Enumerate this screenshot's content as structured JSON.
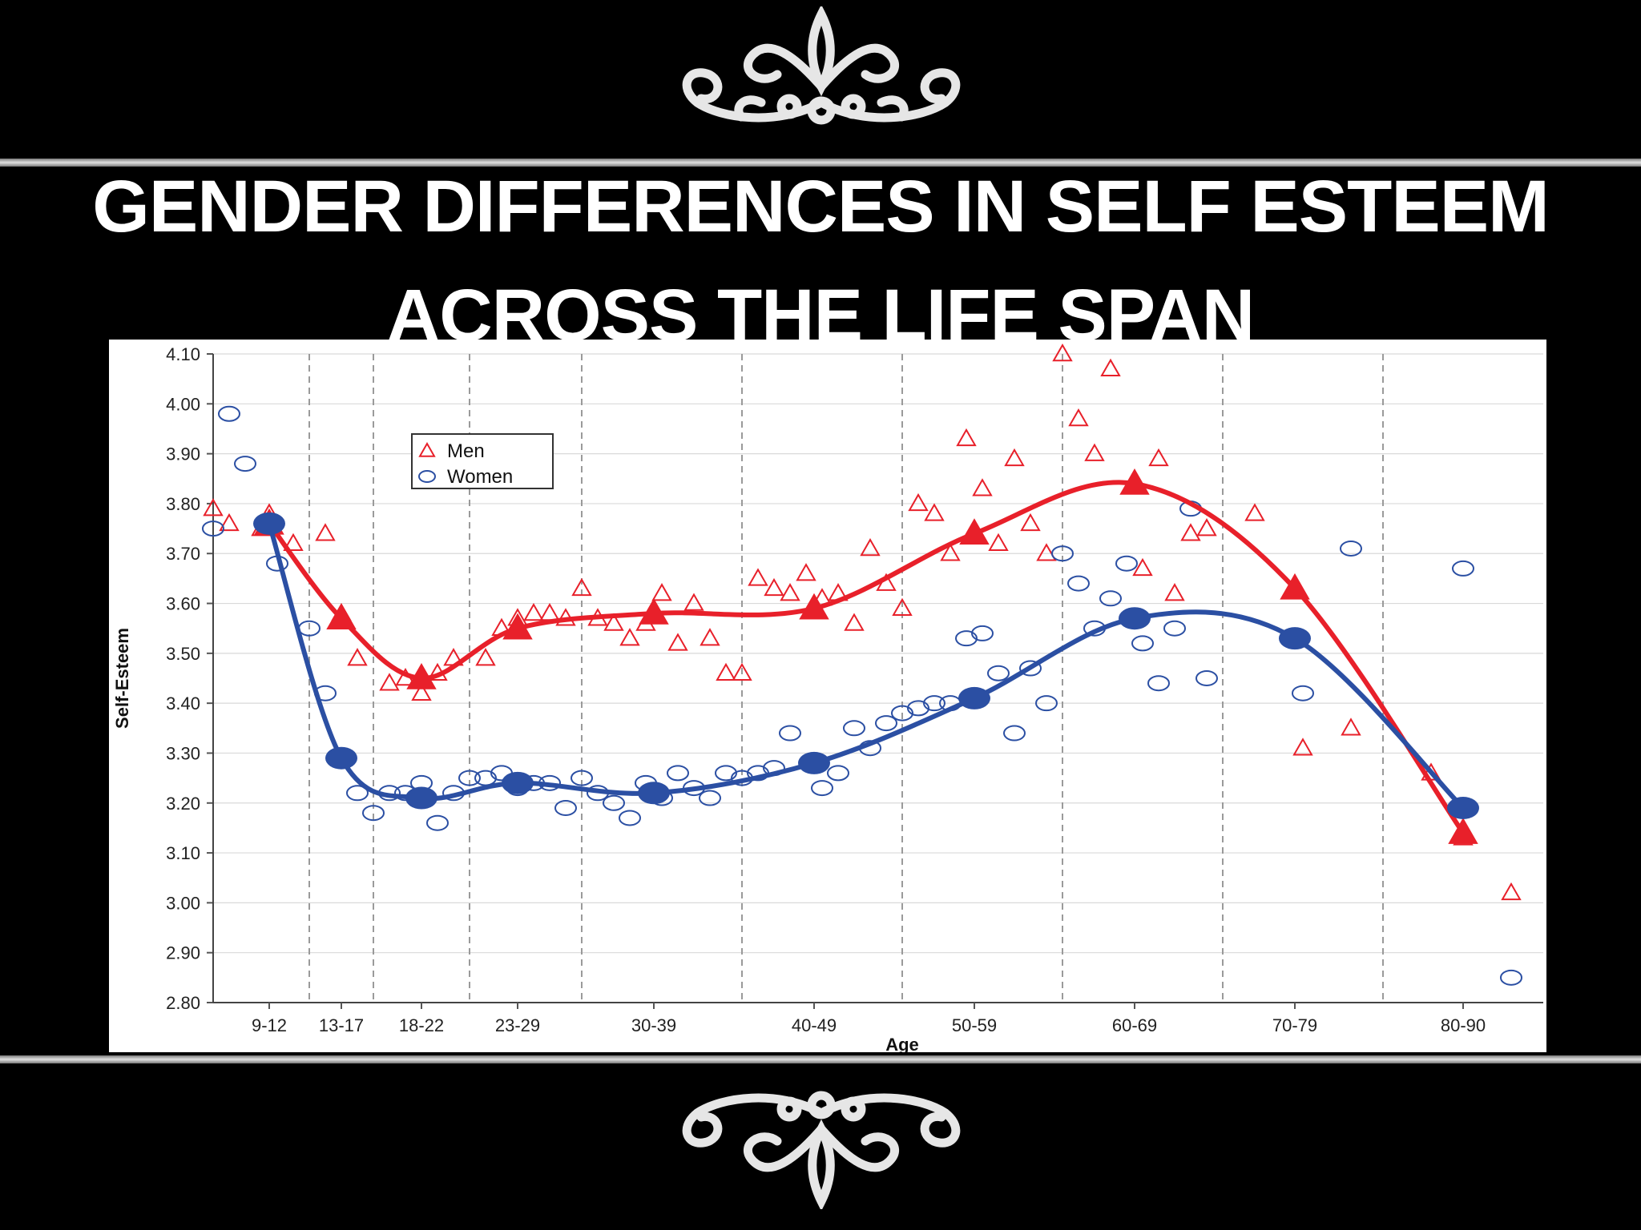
{
  "slide": {
    "title_line1": "GENDER DIFFERENCES IN SELF ESTEEM",
    "title_line2": "ACROSS THE LIFE SPAN",
    "colors": {
      "background": "#000000",
      "title": "#ffffff",
      "rule": "#cfcfcf"
    }
  },
  "chart_data": {
    "type": "scatter",
    "title": "",
    "xlabel": "Age",
    "ylabel": "Self-Esteem",
    "categories": [
      "9-12",
      "13-17",
      "18-22",
      "23-29",
      "30-39",
      "40-49",
      "50-59",
      "60-69",
      "70-79",
      "80-90"
    ],
    "category_x": [
      10.5,
      15,
      20,
      26,
      34.5,
      44.5,
      54.5,
      64.5,
      74.5,
      85
    ],
    "xlim": [
      7,
      90
    ],
    "ylim": [
      2.8,
      4.1
    ],
    "yticks": [
      "2.80",
      "2.90",
      "3.00",
      "3.10",
      "3.20",
      "3.30",
      "3.40",
      "3.50",
      "3.60",
      "3.70",
      "3.80",
      "3.90",
      "4.00",
      "4.10"
    ],
    "vgrid_x": [
      13,
      17,
      23,
      30,
      40,
      50,
      60,
      70,
      80
    ],
    "grid": true,
    "legend_position": "top-left",
    "legend": [
      {
        "label": "Men",
        "marker": "triangle"
      },
      {
        "label": "Women",
        "marker": "circle"
      }
    ],
    "series": [
      {
        "name": "Men",
        "color": "#e8202a",
        "marker": "triangle",
        "values": [
          3.76,
          3.57,
          3.45,
          3.55,
          3.58,
          3.59,
          3.74,
          3.84,
          3.63,
          3.14
        ],
        "raw_points": [
          [
            7,
            3.79
          ],
          [
            8,
            3.76
          ],
          [
            10,
            3.75
          ],
          [
            10.5,
            3.78
          ],
          [
            12,
            3.72
          ],
          [
            14,
            3.74
          ],
          [
            15,
            3.58
          ],
          [
            16,
            3.49
          ],
          [
            18,
            3.44
          ],
          [
            19,
            3.45
          ],
          [
            20,
            3.42
          ],
          [
            21,
            3.46
          ],
          [
            22,
            3.49
          ],
          [
            24,
            3.49
          ],
          [
            25,
            3.55
          ],
          [
            26,
            3.57
          ],
          [
            27,
            3.58
          ],
          [
            28,
            3.58
          ],
          [
            29,
            3.57
          ],
          [
            30,
            3.63
          ],
          [
            31,
            3.57
          ],
          [
            32,
            3.56
          ],
          [
            33,
            3.53
          ],
          [
            34,
            3.56
          ],
          [
            35,
            3.62
          ],
          [
            36,
            3.52
          ],
          [
            37,
            3.6
          ],
          [
            38,
            3.53
          ],
          [
            39,
            3.46
          ],
          [
            40,
            3.46
          ],
          [
            41,
            3.65
          ],
          [
            42,
            3.63
          ],
          [
            43,
            3.62
          ],
          [
            44,
            3.66
          ],
          [
            45,
            3.61
          ],
          [
            46,
            3.62
          ],
          [
            47,
            3.56
          ],
          [
            48,
            3.71
          ],
          [
            49,
            3.64
          ],
          [
            50,
            3.59
          ],
          [
            51,
            3.8
          ],
          [
            52,
            3.78
          ],
          [
            53,
            3.7
          ],
          [
            54,
            3.93
          ],
          [
            55,
            3.83
          ],
          [
            56,
            3.72
          ],
          [
            57,
            3.89
          ],
          [
            58,
            3.76
          ],
          [
            59,
            3.7
          ],
          [
            60,
            4.1
          ],
          [
            61,
            3.97
          ],
          [
            62,
            3.9
          ],
          [
            63,
            4.07
          ],
          [
            65,
            3.67
          ],
          [
            66,
            3.89
          ],
          [
            67,
            3.62
          ],
          [
            68,
            3.74
          ],
          [
            69,
            3.75
          ],
          [
            72,
            3.78
          ],
          [
            75,
            3.31
          ],
          [
            78,
            3.35
          ],
          [
            83,
            3.26
          ],
          [
            85,
            3.13
          ],
          [
            88,
            3.02
          ]
        ]
      },
      {
        "name": "Women",
        "color": "#2b4fa3",
        "marker": "circle",
        "values": [
          3.76,
          3.29,
          3.21,
          3.24,
          3.22,
          3.28,
          3.41,
          3.57,
          3.53,
          3.19
        ],
        "raw_points": [
          [
            7,
            3.75
          ],
          [
            8,
            3.98
          ],
          [
            9,
            3.88
          ],
          [
            11,
            3.68
          ],
          [
            13,
            3.55
          ],
          [
            14,
            3.42
          ],
          [
            16,
            3.22
          ],
          [
            17,
            3.18
          ],
          [
            18,
            3.22
          ],
          [
            19,
            3.22
          ],
          [
            20,
            3.24
          ],
          [
            21,
            3.16
          ],
          [
            22,
            3.22
          ],
          [
            23,
            3.25
          ],
          [
            24,
            3.25
          ],
          [
            25,
            3.26
          ],
          [
            26,
            3.23
          ],
          [
            27,
            3.24
          ],
          [
            28,
            3.24
          ],
          [
            29,
            3.19
          ],
          [
            30,
            3.25
          ],
          [
            31,
            3.22
          ],
          [
            32,
            3.2
          ],
          [
            33,
            3.17
          ],
          [
            34,
            3.24
          ],
          [
            35,
            3.21
          ],
          [
            36,
            3.26
          ],
          [
            37,
            3.23
          ],
          [
            38,
            3.21
          ],
          [
            39,
            3.26
          ],
          [
            40,
            3.25
          ],
          [
            41,
            3.26
          ],
          [
            42,
            3.27
          ],
          [
            43,
            3.34
          ],
          [
            45,
            3.23
          ],
          [
            46,
            3.26
          ],
          [
            47,
            3.35
          ],
          [
            48,
            3.31
          ],
          [
            49,
            3.36
          ],
          [
            50,
            3.38
          ],
          [
            51,
            3.39
          ],
          [
            52,
            3.4
          ],
          [
            53,
            3.4
          ],
          [
            54,
            3.53
          ],
          [
            55,
            3.54
          ],
          [
            56,
            3.46
          ],
          [
            57,
            3.34
          ],
          [
            58,
            3.47
          ],
          [
            59,
            3.4
          ],
          [
            60,
            3.7
          ],
          [
            61,
            3.64
          ],
          [
            62,
            3.55
          ],
          [
            63,
            3.61
          ],
          [
            64,
            3.68
          ],
          [
            65,
            3.52
          ],
          [
            66,
            3.44
          ],
          [
            67,
            3.55
          ],
          [
            68,
            3.79
          ],
          [
            69,
            3.45
          ],
          [
            75,
            3.42
          ],
          [
            78,
            3.71
          ],
          [
            85,
            3.67
          ],
          [
            88,
            2.85
          ]
        ]
      }
    ]
  }
}
